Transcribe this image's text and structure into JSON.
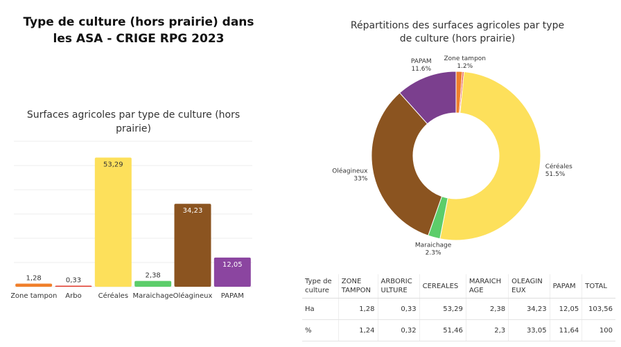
{
  "page": {
    "title": "Type de culture (hors prairie) dans les ASA  - CRIGE RPG 2023"
  },
  "chart_data": [
    {
      "type": "bar",
      "title": "Surfaces agricoles par type de culture (hors prairie)",
      "categories": [
        "Zone tampon",
        "Arbo",
        "Céréales",
        "Maraichage",
        "Oléagineux",
        "PAPAM"
      ],
      "values": [
        1.28,
        0.33,
        53.29,
        2.38,
        34.23,
        12.05
      ],
      "value_labels": [
        "1,28",
        "0,33",
        "53,29",
        "2,38",
        "34,23",
        "12,05"
      ],
      "colors": [
        "#f07f2b",
        "#e23a2c",
        "#fde05b",
        "#5ccd6a",
        "#8b5420",
        "#8b45a0"
      ],
      "ylim": [
        0,
        60
      ],
      "grid": true,
      "legend": "none"
    },
    {
      "type": "pie",
      "title": "Répartitions des surfaces agricoles par type de culture (hors prairie)",
      "slices": [
        {
          "label": "Zone tampon",
          "value": 1.2,
          "pct_label": "1.2%",
          "color": "#f07f2b"
        },
        {
          "label": "Arbo",
          "value": 0.3,
          "pct_label": "",
          "color": "#e23a2c"
        },
        {
          "label": "Céréales",
          "value": 51.5,
          "pct_label": "51.5%",
          "color": "#fde05b"
        },
        {
          "label": "Maraichage",
          "value": 2.3,
          "pct_label": "2.3%",
          "color": "#5ccd6a"
        },
        {
          "label": "Oléagineux",
          "value": 33,
          "pct_label": "33%",
          "color": "#8b5420"
        },
        {
          "label": "PAPAM",
          "value": 11.6,
          "pct_label": "11.6%",
          "color": "#7b3f8e"
        }
      ],
      "donut": true
    },
    {
      "type": "table",
      "header": [
        "Type de culture",
        "ZONE TAMPON",
        "ARBORICULTURE",
        "CEREALES",
        "MARAICHAGE",
        "OLEAGINEUX",
        "PAPAM",
        "TOTAL"
      ],
      "header_lines": [
        [
          "Type de",
          "culture"
        ],
        [
          "ZONE",
          "TAMPON"
        ],
        [
          "ARBORIC",
          "ULTURE"
        ],
        [
          "CEREALES"
        ],
        [
          "MARAICH",
          "AGE"
        ],
        [
          "OLEAGIN",
          "EUX"
        ],
        [
          "PAPAM"
        ],
        [
          "TOTAL"
        ]
      ],
      "rows": [
        [
          "Ha",
          "1,28",
          "0,33",
          "53,29",
          "2,38",
          "34,23",
          "12,05",
          "103,56"
        ],
        [
          "%",
          "1,24",
          "0,32",
          "51,46",
          "2,3",
          "33,05",
          "11,64",
          "100"
        ]
      ]
    }
  ]
}
